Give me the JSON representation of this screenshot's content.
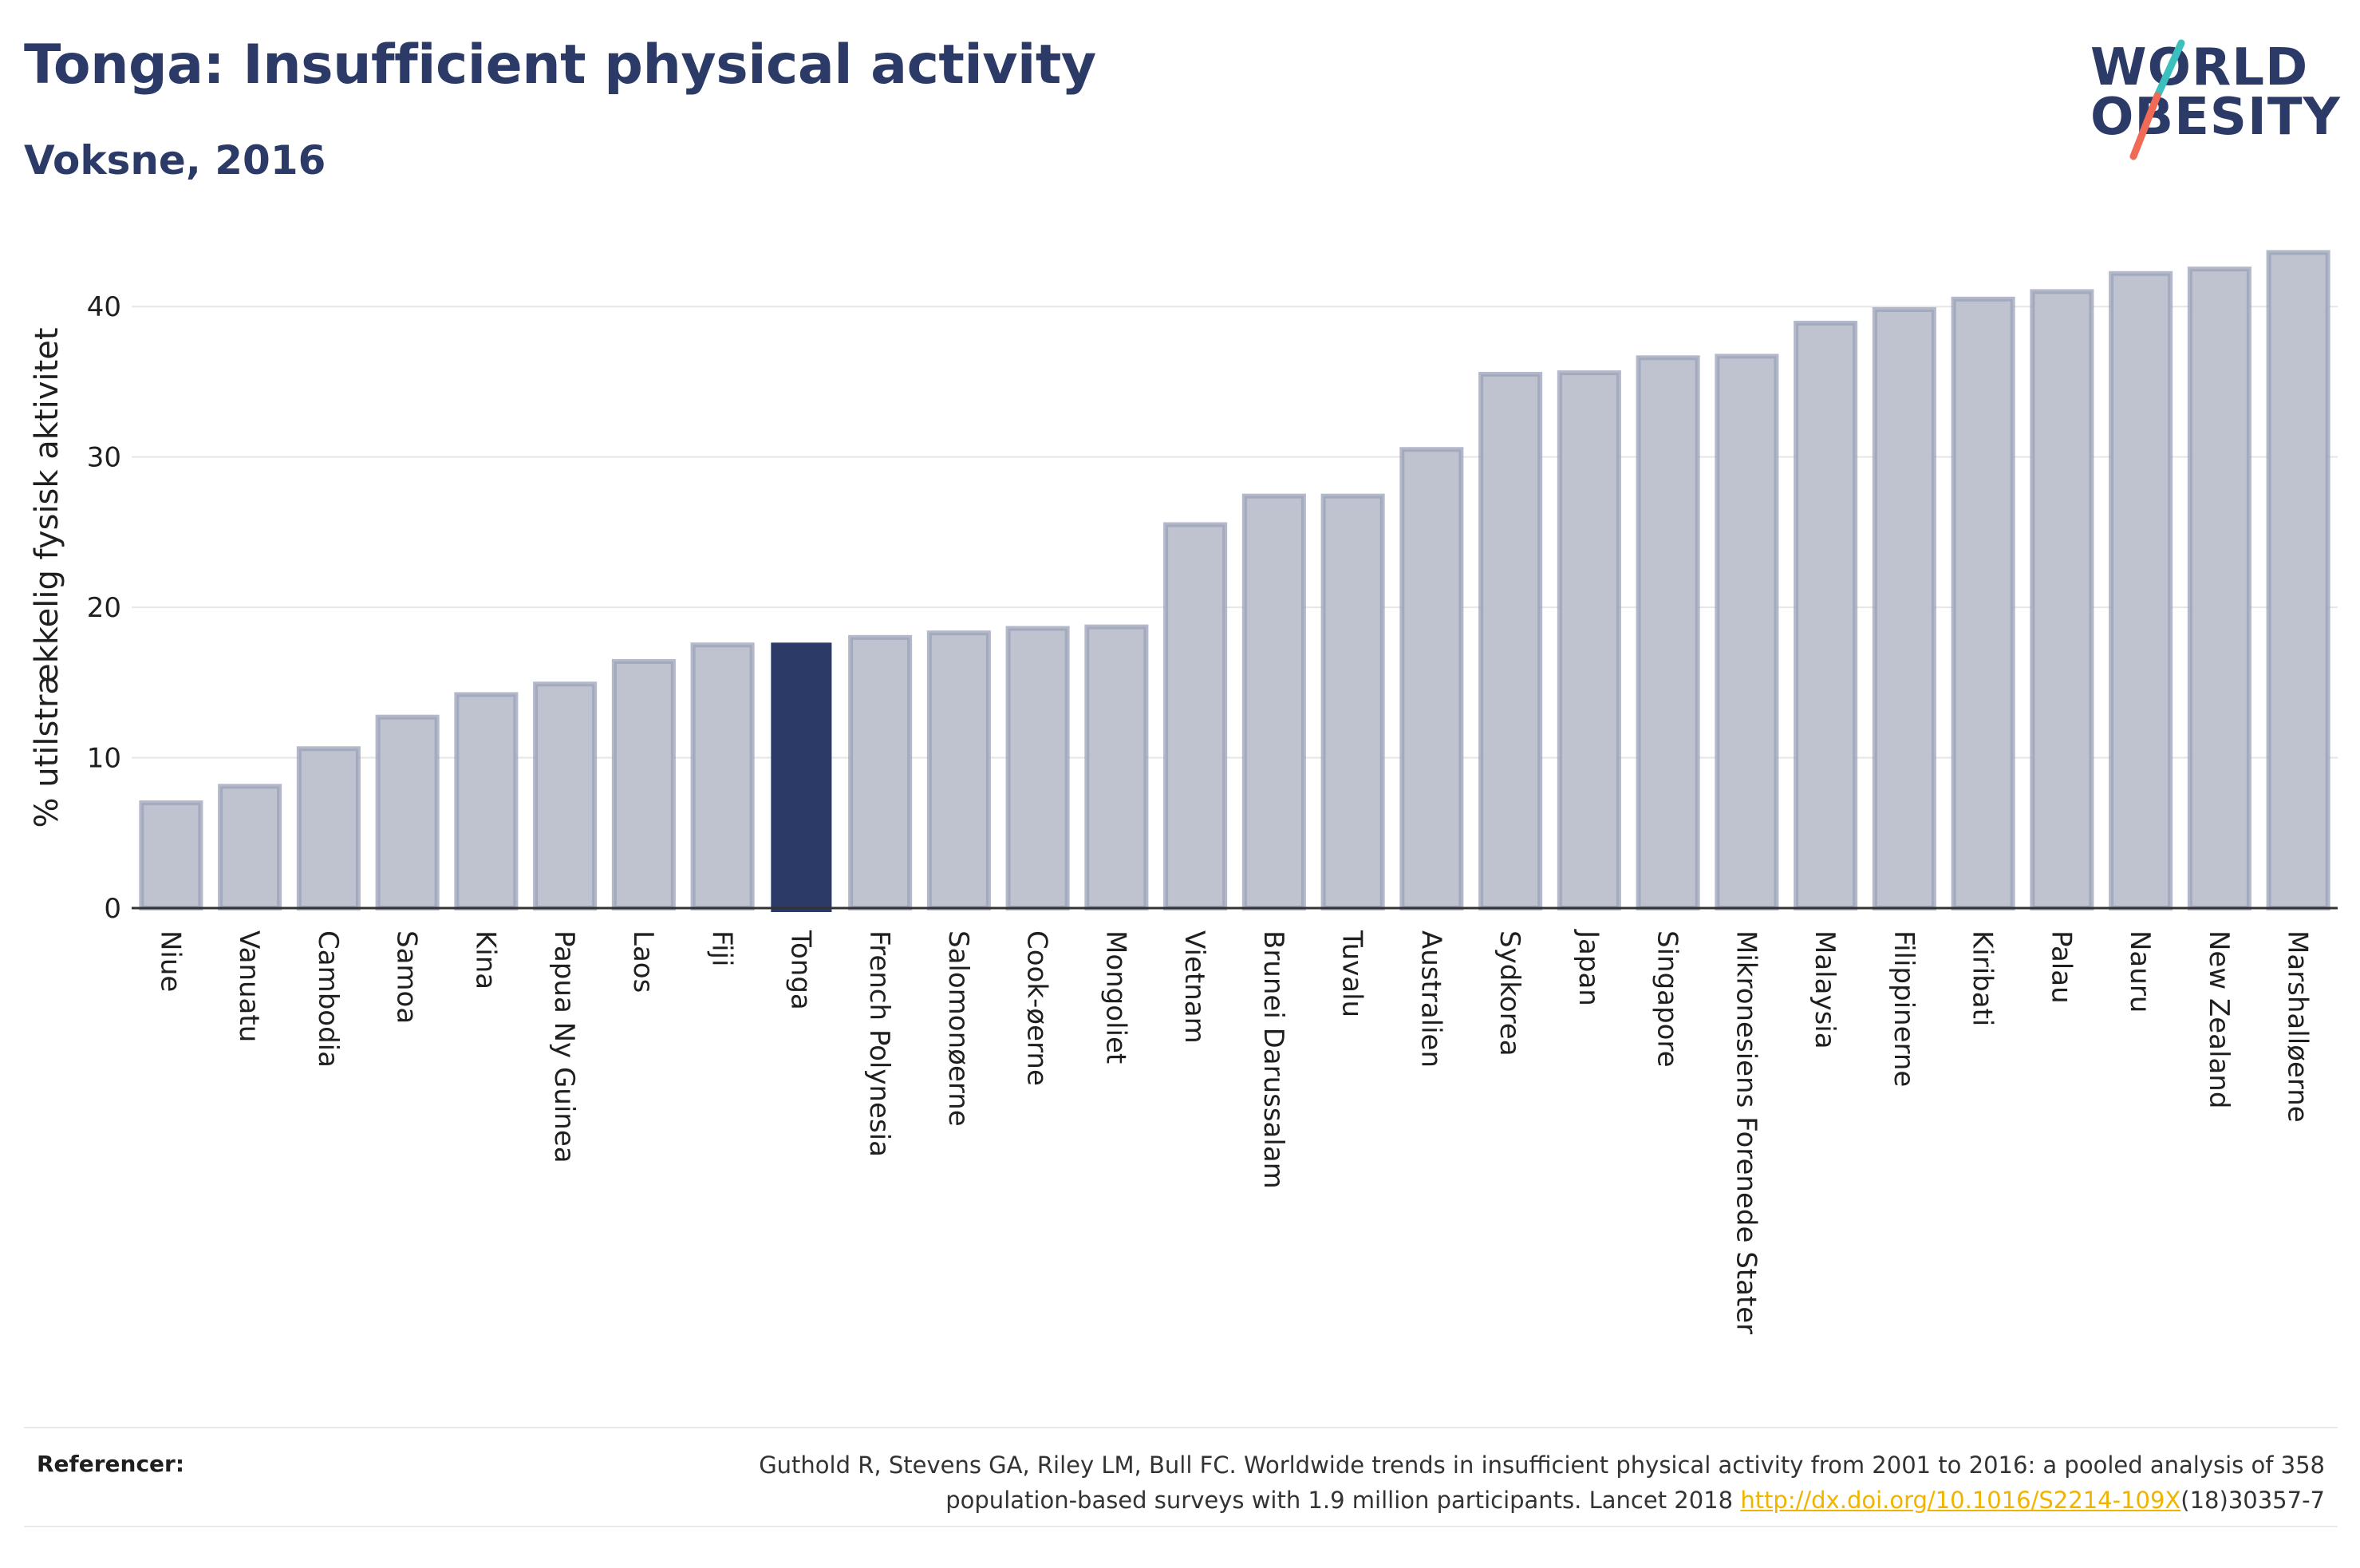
{
  "header": {
    "title": "Tonga: Insufficient physical activity",
    "subtitle": "Voksne, 2016"
  },
  "logo": {
    "line1": "WORLD",
    "line2": "OBESITY",
    "accent_teal": "#3cc0bd",
    "accent_coral": "#f06a55"
  },
  "colors": {
    "bar_default_fill": "#bfc3d0",
    "bar_default_stroke": "#9aa2b8",
    "bar_highlight": "#2b3a67",
    "grid": "#e6e6e6",
    "axis": "#333333"
  },
  "chart_data": {
    "type": "bar",
    "ylabel": "% utilstrækkelig fysisk aktivitet",
    "xlabel": "",
    "ylim": [
      0,
      45
    ],
    "yticks": [
      0,
      10,
      20,
      30,
      40
    ],
    "grid": true,
    "highlight": "Tonga",
    "categories": [
      "Niue",
      "Vanuatu",
      "Cambodia",
      "Samoa",
      "Kina",
      "Papua Ny Guinea",
      "Laos",
      "Fiji",
      "Tonga",
      "French Polynesia",
      "Salomonøerne",
      "Cook-øerne",
      "Mongoliet",
      "Vietnam",
      "Brunei Darussalam",
      "Tuvalu",
      "Australien",
      "Sydkorea",
      "Japan",
      "Singapore",
      "Mikronesiens Forenede Stater",
      "Malaysia",
      "Filippinerne",
      "Kiribati",
      "Palau",
      "Nauru",
      "New Zealand",
      "Marshalløerne"
    ],
    "values": [
      7.0,
      8.1,
      10.6,
      12.7,
      14.2,
      14.9,
      16.4,
      17.5,
      17.6,
      18.0,
      18.3,
      18.6,
      18.7,
      25.5,
      27.4,
      27.4,
      30.5,
      35.5,
      35.6,
      36.6,
      36.7,
      38.9,
      39.8,
      40.5,
      41.0,
      42.2,
      42.5,
      43.6
    ]
  },
  "references": {
    "label": "Referencer:",
    "line1": "Guthold R, Stevens GA, Riley LM, Bull FC. Worldwide trends in insufficient physical activity from 2001 to 2016: a pooled analysis of 358",
    "line2_prefix": "population-based surveys with 1.9 million participants. Lancet 2018 ",
    "link": "http://dx.doi.org/10.1016/S2214-109X",
    "line2_suffix": "(18)30357-7"
  }
}
